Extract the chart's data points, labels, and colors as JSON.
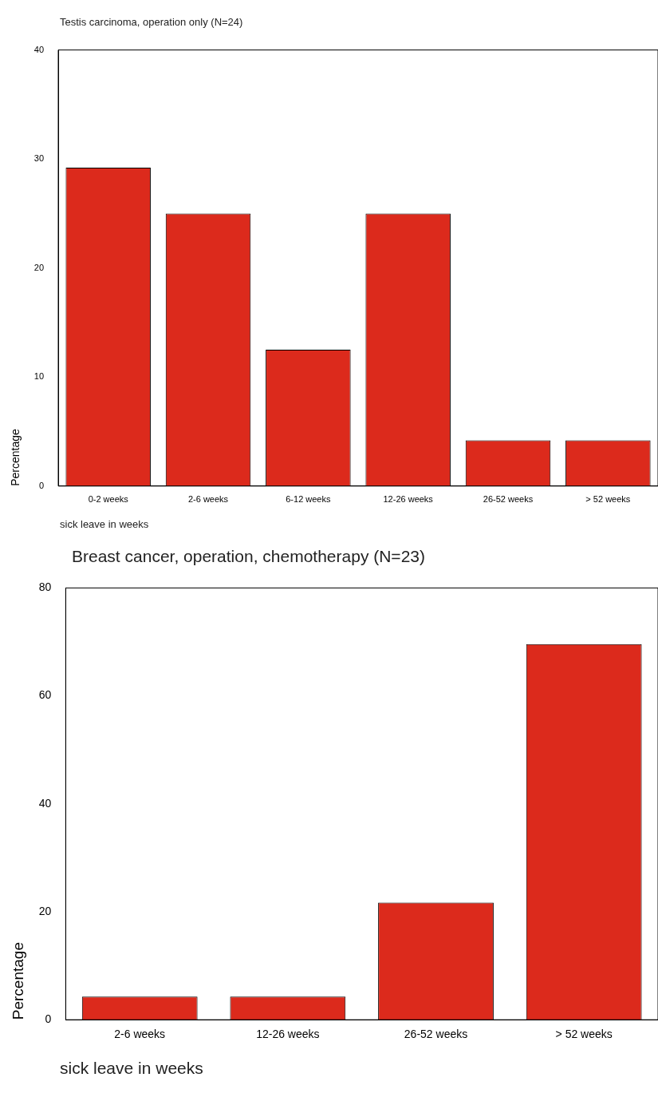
{
  "chart_data": [
    {
      "type": "bar",
      "title": "Testis carcinoma, operation only (N=24)",
      "xlabel": "sick leave in weeks",
      "ylabel": "Percentage",
      "categories": [
        "0-2 weeks",
        "2-6 weeks",
        "6-12 weeks",
        "12-26 weeks",
        "26-52 weeks",
        "> 52 weeks"
      ],
      "values": [
        29.2,
        25,
        12.5,
        25,
        4.2,
        4.2
      ],
      "color": "#dc2a1c",
      "ylim": [
        0,
        40
      ],
      "yticks": [
        0,
        10,
        20,
        30,
        40
      ],
      "grid": false
    },
    {
      "type": "bar",
      "title": "Breast cancer, operation, chemotherapy (N=23)",
      "xlabel": "sick leave in weeks",
      "ylabel": "Percentage",
      "categories": [
        "2-6 weeks",
        "12-26 weeks",
        "26-52 weeks",
        "> 52 weeks"
      ],
      "values": [
        4.3,
        4.3,
        21.7,
        69.6
      ],
      "color": "#dc2a1c",
      "ylim": [
        0,
        80
      ],
      "yticks": [
        0,
        20,
        40,
        60,
        80
      ],
      "grid": false
    }
  ]
}
